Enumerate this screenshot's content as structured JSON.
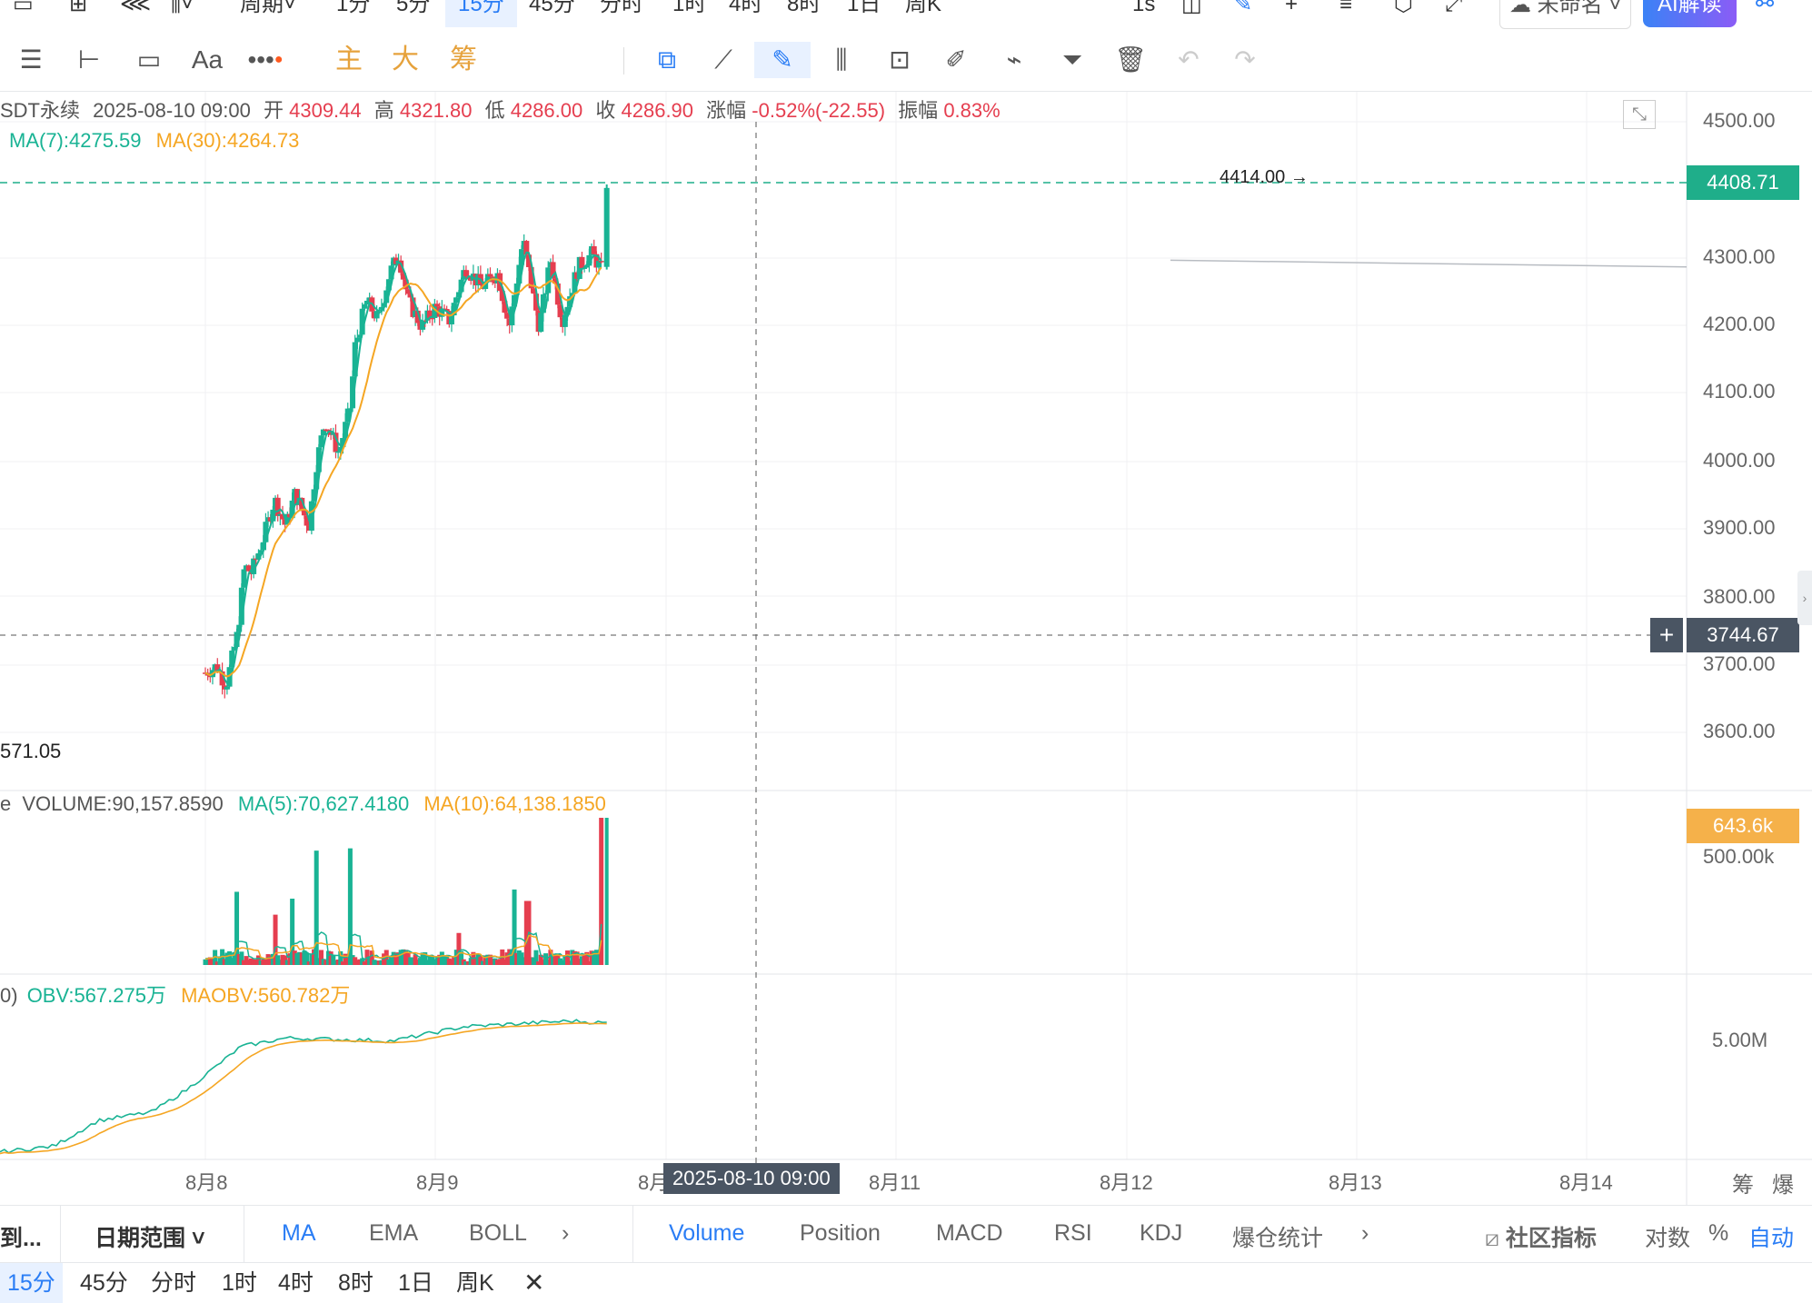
{
  "top_bar": {
    "items": [
      "周期",
      "1分",
      "5分",
      "15分",
      "45分",
      "分时",
      "1时",
      "4时",
      "8时",
      "1日",
      "周K"
    ],
    "active": "15分",
    "right_items": [
      "1s",
      "未命名",
      "AI解读"
    ]
  },
  "toolbar": {
    "indicators": [
      "主",
      "大",
      "筹"
    ],
    "font_label": "Aa"
  },
  "header": {
    "symbol": "SDT永续",
    "datetime": "2025-08-10 09:00",
    "open_label": "开",
    "open": "4309.44",
    "high_label": "高",
    "high": "4321.80",
    "low_label": "低",
    "low": "4286.00",
    "close_label": "收",
    "close": "4286.90",
    "change_label": "涨幅",
    "change": "-0.52%(-22.55)",
    "amp_label": "振幅",
    "amp": "0.83%",
    "ma7": "MA(7):4275.59",
    "ma30": "MA(30):4264.73"
  },
  "volume_header": {
    "prefix": "e",
    "volume": "VOLUME:90,157.8590",
    "ma5": "MA(5):70,627.4180",
    "ma10": "MA(10):64,138.1850"
  },
  "obv_header": {
    "prefix": "0)",
    "obv": "OBV:567.275万",
    "maobv": "MAOBV:560.782万"
  },
  "price_axis": [
    "4500.00",
    "4300.00",
    "4200.00",
    "4100.00",
    "4000.00",
    "3900.00",
    "3800.00",
    "3700.00",
    "3600.00"
  ],
  "price_tags": {
    "last": "4408.71",
    "crosshair": "3744.67",
    "volume_last": "643.6k"
  },
  "annotations": {
    "high_mark": "4414.00 →",
    "low_mark": "571.05"
  },
  "volume_axis": [
    "500.00k"
  ],
  "obv_axis": [
    "5.00M"
  ],
  "date_axis": [
    "8月8",
    "8月9",
    "8月",
    "8月11",
    "8月12",
    "8月13",
    "8月14"
  ],
  "crosshair_date": "2025-08-10 09:00",
  "bottom_tabs": {
    "left": [
      "到...",
      "日期范围"
    ],
    "main_indicators": [
      "MA",
      "EMA",
      "BOLL"
    ],
    "sub_indicators": [
      "Volume",
      "Position",
      "MACD",
      "RSI",
      "KDJ",
      "爆仓统计"
    ],
    "right": [
      "社区指标",
      "对数",
      "%",
      "自动"
    ],
    "corner": [
      "筹",
      "爆"
    ]
  },
  "timeframe_bar": [
    "15分",
    "45分",
    "分时",
    "1时",
    "4时",
    "8时",
    "1日",
    "周K"
  ],
  "colors": {
    "up": "#19b394",
    "down": "#e53e4f",
    "ma7": "#19b394",
    "ma30": "#f5a623",
    "accent": "#2a7df5",
    "last_tag": "#1fae8a",
    "vol_tag": "#f5b14a",
    "cross_tag": "#4a5563"
  },
  "chart_data": [
    {
      "type": "candlestick",
      "title": "",
      "x": [
        "8月8",
        "8月9",
        "8月10",
        "8月11",
        "8月12",
        "8月13",
        "8月14"
      ],
      "ylim": [
        3571.05,
        4500
      ],
      "anchors": [
        {
          "t": 0.0,
          "v": 3680
        },
        {
          "t": 0.05,
          "v": 3690
        },
        {
          "t": 0.09,
          "v": 3660
        },
        {
          "t": 0.14,
          "v": 3740
        },
        {
          "t": 0.17,
          "v": 3840
        },
        {
          "t": 0.2,
          "v": 3830
        },
        {
          "t": 0.25,
          "v": 3880
        },
        {
          "t": 0.3,
          "v": 3940
        },
        {
          "t": 0.35,
          "v": 3900
        },
        {
          "t": 0.39,
          "v": 3950
        },
        {
          "t": 0.45,
          "v": 3900
        },
        {
          "t": 0.48,
          "v": 3990
        },
        {
          "t": 0.52,
          "v": 4060
        },
        {
          "t": 0.58,
          "v": 4010
        },
        {
          "t": 0.63,
          "v": 4080
        },
        {
          "t": 0.65,
          "v": 4170
        },
        {
          "t": 0.7,
          "v": 4240
        },
        {
          "t": 0.75,
          "v": 4210
        },
        {
          "t": 0.8,
          "v": 4280
        },
        {
          "t": 0.84,
          "v": 4310
        },
        {
          "t": 0.88,
          "v": 4240
        },
        {
          "t": 0.94,
          "v": 4200
        },
        {
          "t": 1.0,
          "v": 4230
        },
        {
          "t": 1.06,
          "v": 4210
        },
        {
          "t": 1.13,
          "v": 4290
        },
        {
          "t": 1.2,
          "v": 4260
        },
        {
          "t": 1.27,
          "v": 4280
        },
        {
          "t": 1.32,
          "v": 4200
        },
        {
          "t": 1.38,
          "v": 4330
        },
        {
          "t": 1.45,
          "v": 4200
        },
        {
          "t": 1.5,
          "v": 4300
        },
        {
          "t": 1.55,
          "v": 4210
        },
        {
          "t": 1.62,
          "v": 4290
        },
        {
          "t": 1.68,
          "v": 4310
        },
        {
          "t": 1.72,
          "v": 4286
        }
      ],
      "last_close": 4408.71,
      "high_mark": 4414.0,
      "ma7_label": "MA(7):4275.59",
      "ma30_label": "MA(30):4264.73"
    },
    {
      "type": "bar",
      "title": "VOLUME",
      "ylim": [
        0,
        643600
      ],
      "spikes": [
        {
          "t": 0.14,
          "v": 320000
        },
        {
          "t": 0.3,
          "v": 220000
        },
        {
          "t": 0.38,
          "v": 290000
        },
        {
          "t": 0.48,
          "v": 500000
        },
        {
          "t": 0.63,
          "v": 510000
        },
        {
          "t": 1.1,
          "v": 140000
        },
        {
          "t": 1.34,
          "v": 330000
        },
        {
          "t": 1.4,
          "v": 280000
        },
        {
          "t": 1.72,
          "v": 643600
        }
      ],
      "last": 643600,
      "ma5_label": "MA(5):70,627.4180",
      "ma10_label": "MA(10):64,138.1850"
    },
    {
      "type": "line",
      "title": "OBV",
      "ylim": [
        5200000,
        5800000
      ],
      "last_obv": 5672750,
      "last_maobv": 5607820
    }
  ]
}
